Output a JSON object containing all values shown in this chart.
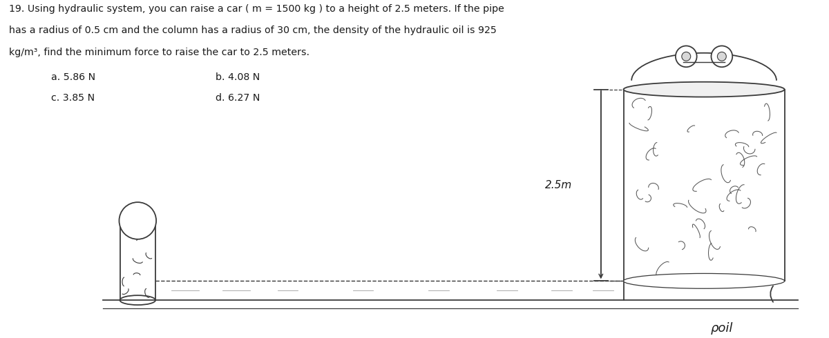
{
  "title_line1": "19. Using hydraulic system, you can raise a car ( m = 1500 kg ) to a height of 2.5 meters. If the pipe",
  "title_line2": "has a radius of 0.5 cm and the column has a radius of 30 cm, the density of the hydraulic oil is 925",
  "title_line3": "kg/m³, find the minimum force to raise the car to 2.5 meters.",
  "option_a": "a. 5.86 N",
  "option_b": "b. 4.08 N",
  "option_c": "c. 3.85 N",
  "option_d": "d. 6.27 N",
  "height_label": "2.5m",
  "density_label": "ρoil",
  "bg_color": "#ffffff",
  "text_color": "#1a1a1a",
  "diagram_color": "#3a3a3a"
}
